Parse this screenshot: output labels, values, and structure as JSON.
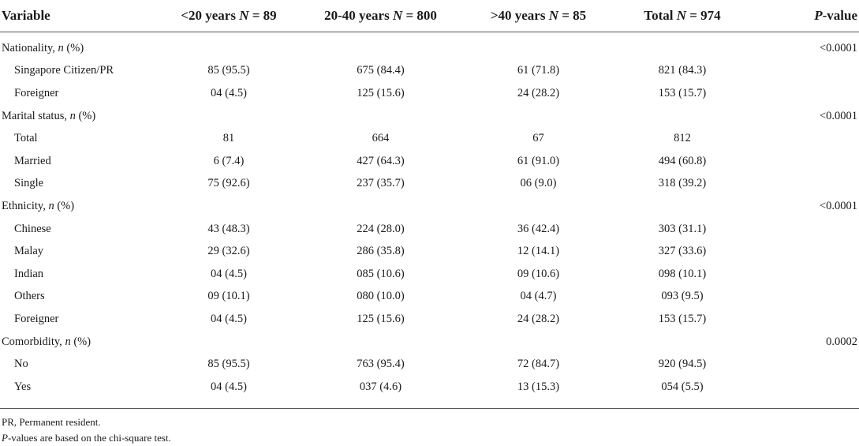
{
  "header": {
    "variable": "Variable",
    "col1_prefix": "<20 years ",
    "col1_n": "N",
    "col1_suffix": " = 89",
    "col2_prefix": "20-40 years ",
    "col2_n": "N",
    "col2_suffix": " = 800",
    "col3_prefix": ">40 years ",
    "col3_n": "N",
    "col3_suffix": " = 85",
    "col4_prefix": "Total ",
    "col4_n": "N",
    "col4_suffix": " = 974",
    "pvalue_p": "P",
    "pvalue_suffix": "-value"
  },
  "rows": {
    "nationality": {
      "label": "Nationality, ",
      "n": "n",
      "pct": " (%)",
      "p": "<0.0001"
    },
    "sg_citizen": {
      "label": "Singapore Citizen/PR",
      "c1": "85 (95.5)",
      "c2": "675 (84.4)",
      "c3": "61 (71.8)",
      "c4": "821 (84.3)"
    },
    "foreigner_nat": {
      "label": "Foreigner",
      "c1": "04 (4.5)",
      "c2": "125 (15.6)",
      "c3": "24 (28.2)",
      "c4": "153 (15.7)"
    },
    "marital": {
      "label": "Marital status, ",
      "n": "n",
      "pct": " (%)",
      "p": "<0.0001"
    },
    "marital_total": {
      "label": "Total",
      "c1": "81",
      "c2": "664",
      "c3": "67",
      "c4": "812"
    },
    "married": {
      "label": "Married",
      "c1": "6 (7.4)",
      "c2": "427 (64.3)",
      "c3": "61 (91.0)",
      "c4": "494 (60.8)"
    },
    "single": {
      "label": "Single",
      "c1": "75 (92.6)",
      "c2": "237 (35.7)",
      "c3": "06 (9.0)",
      "c4": "318 (39.2)"
    },
    "ethnicity": {
      "label": "Ethnicity, ",
      "n": "n",
      "pct": " (%)",
      "p": "<0.0001"
    },
    "chinese": {
      "label": "Chinese",
      "c1": "43 (48.3)",
      "c2": "224 (28.0)",
      "c3": "36 (42.4)",
      "c4": "303 (31.1)"
    },
    "malay": {
      "label": "Malay",
      "c1": "29 (32.6)",
      "c2": "286 (35.8)",
      "c3": "12 (14.1)",
      "c4": "327 (33.6)"
    },
    "indian": {
      "label": "Indian",
      "c1": "04 (4.5)",
      "c2": "085 (10.6)",
      "c3": "09 (10.6)",
      "c4": "098 (10.1)"
    },
    "others": {
      "label": "Others",
      "c1": "09 (10.1)",
      "c2": "080 (10.0)",
      "c3": "04 (4.7)",
      "c4": "093 (9.5)"
    },
    "foreigner_eth": {
      "label": "Foreigner",
      "c1": "04 (4.5)",
      "c2": "125 (15.6)",
      "c3": "24 (28.2)",
      "c4": "153 (15.7)"
    },
    "comorbidity": {
      "label": "Comorbidity, ",
      "n": "n",
      "pct": " (%)",
      "p": "0.0002"
    },
    "no": {
      "label": "No",
      "c1": "85 (95.5)",
      "c2": "763 (95.4)",
      "c3": "72 (84.7)",
      "c4": "920 (94.5)"
    },
    "yes": {
      "label": "Yes",
      "c1": "04 (4.5)",
      "c2": "037 (4.6)",
      "c3": "13 (15.3)",
      "c4": "054 (5.5)"
    }
  },
  "notes": {
    "line1": "PR, Permanent resident.",
    "line2_p": "P",
    "line2_rest": "-values are based on the chi-square test."
  }
}
